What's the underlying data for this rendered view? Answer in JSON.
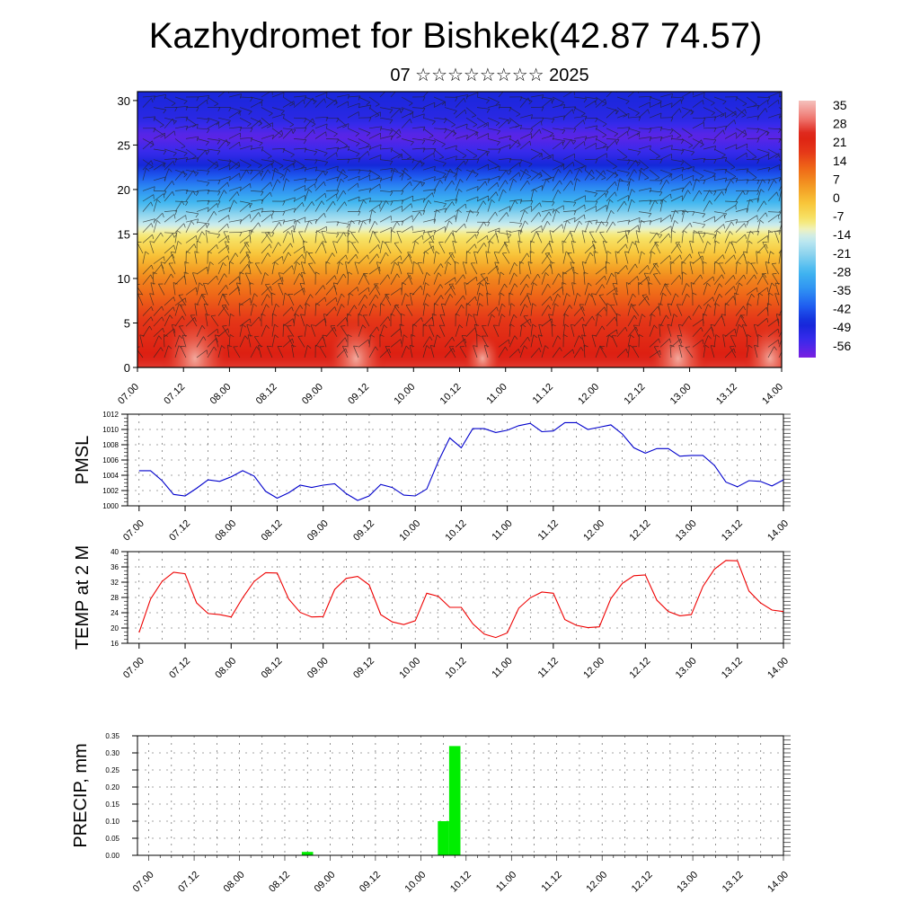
{
  "title": "Kazhydromet for Bishkek(42.87 74.57)",
  "subtitle": "07 ☆☆☆☆☆☆☆☆ 2025",
  "colors": {
    "pmsl_line": "#0000cc",
    "temp_line": "#ee0000",
    "precip_bar": "#00ee00",
    "grid": "#000000"
  },
  "chart_data": [
    {
      "id": "cross_section",
      "type": "heatmap",
      "y_ticks": [
        "0",
        "5",
        "10",
        "15",
        "20",
        "25",
        "30"
      ],
      "ylim": [
        0,
        31
      ],
      "x_ticks": [
        "07.00",
        "07.12",
        "08.00",
        "08.12",
        "09.00",
        "09.12",
        "10.00",
        "10.12",
        "11.00",
        "11.12",
        "12.00",
        "12.12",
        "13.00",
        "13.12",
        "14.00"
      ],
      "colorbar_labels": [
        "35",
        "28",
        "21",
        "14",
        "7",
        "0",
        "-7",
        "-14",
        "-21",
        "-28",
        "-35",
        "-42",
        "-49",
        "-56"
      ],
      "colorbar_range": [
        -63,
        42
      ],
      "overlay": "wind barbs",
      "temperature_profile": [
        {
          "level": 0,
          "value": 30
        },
        {
          "level": 5,
          "value": 22
        },
        {
          "level": 10,
          "value": 10
        },
        {
          "level": 15,
          "value": -8
        },
        {
          "level": 18,
          "value": -25
        },
        {
          "level": 21,
          "value": -40
        },
        {
          "level": 24,
          "value": -55
        },
        {
          "level": 26,
          "value": -60
        },
        {
          "level": 28,
          "value": -53
        },
        {
          "level": 31,
          "value": -50
        }
      ]
    },
    {
      "id": "pmsl",
      "type": "line",
      "ylabel": "PMSL",
      "ylim": [
        1000,
        1012
      ],
      "y_ticks": [
        "1000",
        "1002",
        "1004",
        "1006",
        "1008",
        "1010",
        "1012"
      ],
      "x_ticks": [
        "07.00",
        "07.12",
        "08.00",
        "08.12",
        "09.00",
        "09.12",
        "10.00",
        "10.12",
        "11.00",
        "11.12",
        "12.00",
        "12.12",
        "13.00",
        "13.12",
        "14.00"
      ],
      "x_hours_start": 0,
      "x_hours_step": 3,
      "x_range": [
        -3,
        168
      ],
      "values": [
        1004.6,
        1004.6,
        1003.3,
        1001.5,
        1001.3,
        1002.3,
        1003.4,
        1003.2,
        1003.8,
        1004.6,
        1003.9,
        1001.9,
        1001.0,
        1001.7,
        1002.7,
        1002.4,
        1002.7,
        1002.9,
        1001.6,
        1000.7,
        1001.3,
        1002.8,
        1002.4,
        1001.4,
        1001.3,
        1002.2,
        1005.8,
        1008.9,
        1007.6,
        1010.1,
        1010.1,
        1009.6,
        1009.9,
        1010.5,
        1010.8,
        1009.7,
        1009.8,
        1010.9,
        1010.9,
        1010.0,
        1010.3,
        1010.6,
        1009.4,
        1007.6,
        1006.9,
        1007.5,
        1007.5,
        1006.5,
        1006.6,
        1006.6,
        1005.3,
        1003.1,
        1002.5,
        1003.3,
        1003.2,
        1002.6,
        1003.4
      ]
    },
    {
      "id": "temp2m",
      "type": "line",
      "ylabel": "TEMP at 2 M",
      "ylim": [
        16,
        40
      ],
      "y_ticks": [
        "16",
        "20",
        "24",
        "28",
        "32",
        "36",
        "40"
      ],
      "x_ticks": [
        "07.00",
        "07.12",
        "08.00",
        "08.12",
        "09.00",
        "09.12",
        "10.00",
        "10.12",
        "11.00",
        "11.12",
        "12.00",
        "12.12",
        "13.00",
        "13.12",
        "14.00"
      ],
      "x_hours_start": 0,
      "x_hours_step": 3,
      "x_range": [
        -3,
        168
      ],
      "values": [
        18.8,
        27.6,
        32.2,
        34.6,
        34.2,
        26.6,
        23.8,
        23.5,
        22.9,
        27.9,
        32.2,
        34.5,
        34.4,
        27.6,
        24.1,
        22.9,
        23.0,
        30.1,
        33.0,
        33.5,
        31.3,
        23.5,
        21.6,
        20.9,
        21.9,
        29.1,
        28.3,
        25.4,
        25.4,
        21.1,
        18.4,
        17.5,
        18.7,
        25.2,
        27.9,
        29.4,
        29.1,
        22.2,
        20.7,
        20.1,
        20.3,
        27.7,
        31.7,
        33.7,
        33.9,
        27.3,
        24.3,
        23.2,
        23.5,
        30.9,
        35.4,
        37.7,
        37.6,
        29.7,
        26.6,
        24.7,
        24.3
      ]
    },
    {
      "id": "precip",
      "type": "bar",
      "ylabel": "PRECIP, mm",
      "ylim": [
        0,
        0.35
      ],
      "y_ticks": [
        "0.00",
        "0.05",
        "0.10",
        "0.15",
        "0.20",
        "0.25",
        "0.30",
        "0.35"
      ],
      "x_ticks": [
        "07.00",
        "07.12",
        "08.00",
        "08.12",
        "09.00",
        "09.12",
        "10.00",
        "10.12",
        "11.00",
        "11.12",
        "12.00",
        "12.12",
        "13.00",
        "13.12",
        "14.00"
      ],
      "x_range": [
        -3,
        168
      ],
      "bars": [
        {
          "hour": 42,
          "value": 0.01
        },
        {
          "hour": 78,
          "value": 0.1
        },
        {
          "hour": 81,
          "value": 0.32
        }
      ]
    }
  ]
}
